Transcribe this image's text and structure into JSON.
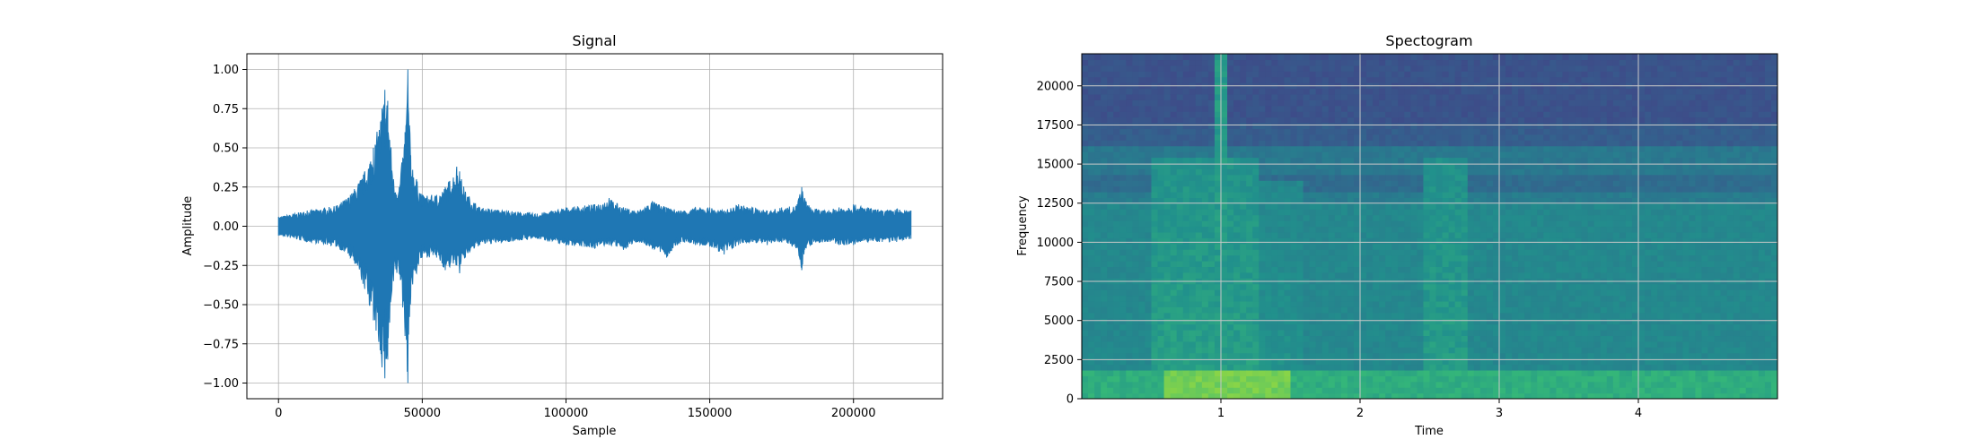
{
  "chart_data": [
    {
      "type": "line",
      "title": "Signal",
      "xlabel": "Sample",
      "ylabel": "Amplitude",
      "xlim": [
        -11000,
        231000
      ],
      "ylim": [
        -1.1,
        1.1
      ],
      "xticks": [
        0,
        50000,
        100000,
        150000,
        200000
      ],
      "xtick_labels": [
        "0",
        "50000",
        "100000",
        "150000",
        "200000"
      ],
      "yticks": [
        -1.0,
        -0.75,
        -0.5,
        -0.25,
        0.0,
        0.25,
        0.5,
        0.75,
        1.0
      ],
      "ytick_labels": [
        "−1.00",
        "−0.75",
        "−0.50",
        "−0.25",
        "0.00",
        "0.25",
        "0.50",
        "0.75",
        "1.00"
      ],
      "grid": true,
      "color": "#1f77b4",
      "series": [
        {
          "x": [
            0,
            10000,
            20000,
            25000,
            30000,
            33000,
            36000,
            37000,
            38000,
            40000,
            42000,
            44000,
            45000,
            46000,
            48000,
            50000,
            55000,
            58000,
            62000,
            63000,
            65000,
            70000,
            80000,
            90000,
            100000,
            110000,
            115000,
            120000,
            125000,
            130000,
            135000,
            140000,
            145000,
            150000,
            155000,
            160000,
            165000,
            170000,
            175000,
            180000,
            182000,
            183000,
            185000,
            190000,
            195000,
            200000,
            205000,
            210000,
            215000,
            220000
          ],
          "upper": [
            0.06,
            0.1,
            0.13,
            0.2,
            0.35,
            0.5,
            0.75,
            0.87,
            0.8,
            0.3,
            0.25,
            0.6,
            1.0,
            0.45,
            0.3,
            0.2,
            0.2,
            0.25,
            0.38,
            0.35,
            0.22,
            0.12,
            0.1,
            0.08,
            0.12,
            0.14,
            0.18,
            0.12,
            0.1,
            0.16,
            0.12,
            0.1,
            0.12,
            0.12,
            0.1,
            0.14,
            0.12,
            0.1,
            0.12,
            0.13,
            0.25,
            0.18,
            0.12,
            0.1,
            0.12,
            0.14,
            0.12,
            0.1,
            0.11,
            0.1
          ],
          "lower": [
            -0.06,
            -0.1,
            -0.13,
            -0.2,
            -0.4,
            -0.6,
            -0.9,
            -0.97,
            -0.85,
            -0.35,
            -0.3,
            -0.7,
            -1.0,
            -0.45,
            -0.3,
            -0.2,
            -0.2,
            -0.28,
            -0.25,
            -0.3,
            -0.2,
            -0.12,
            -0.1,
            -0.08,
            -0.12,
            -0.14,
            -0.12,
            -0.15,
            -0.1,
            -0.14,
            -0.2,
            -0.1,
            -0.12,
            -0.13,
            -0.18,
            -0.12,
            -0.1,
            -0.12,
            -0.1,
            -0.14,
            -0.28,
            -0.15,
            -0.12,
            -0.1,
            -0.12,
            -0.12,
            -0.1,
            -0.1,
            -0.1,
            -0.08
          ]
        }
      ]
    },
    {
      "type": "heatmap",
      "title": "Spectogram",
      "xlabel": "Time",
      "ylabel": "Frequency",
      "xlim": [
        0,
        5.0
      ],
      "ylim": [
        0,
        22050
      ],
      "xticks": [
        1,
        2,
        3,
        4
      ],
      "xtick_labels": [
        "1",
        "2",
        "3",
        "4"
      ],
      "yticks": [
        0,
        2500,
        5000,
        7500,
        10000,
        12500,
        15000,
        17500,
        20000
      ],
      "ytick_labels": [
        "0",
        "2500",
        "5000",
        "7500",
        "10000",
        "12500",
        "15000",
        "17500",
        "20000"
      ],
      "grid": true,
      "colormap": "viridis",
      "bands": [
        {
          "from": 17500,
          "to": 22050,
          "level": 0.32
        },
        {
          "from": 16000,
          "to": 17500,
          "level": 0.37
        },
        {
          "from": 14500,
          "to": 16000,
          "level": 0.5
        },
        {
          "from": 13200,
          "to": 14500,
          "level": 0.44
        },
        {
          "from": 12500,
          "to": 13200,
          "level": 0.52
        },
        {
          "from": 2000,
          "to": 12500,
          "level": 0.58
        },
        {
          "from": 0,
          "to": 2000,
          "level": 0.72
        }
      ],
      "events": [
        {
          "from": 0.5,
          "to": 1.25,
          "max_freq": 15600,
          "level": 0.68
        },
        {
          "from": 1.25,
          "to": 1.6,
          "max_freq": 14000,
          "level": 0.63
        },
        {
          "from": 2.45,
          "to": 2.75,
          "max_freq": 15600,
          "level": 0.67
        }
      ],
      "streaks": [
        {
          "time": 1.0,
          "level": 0.66
        }
      ]
    }
  ]
}
